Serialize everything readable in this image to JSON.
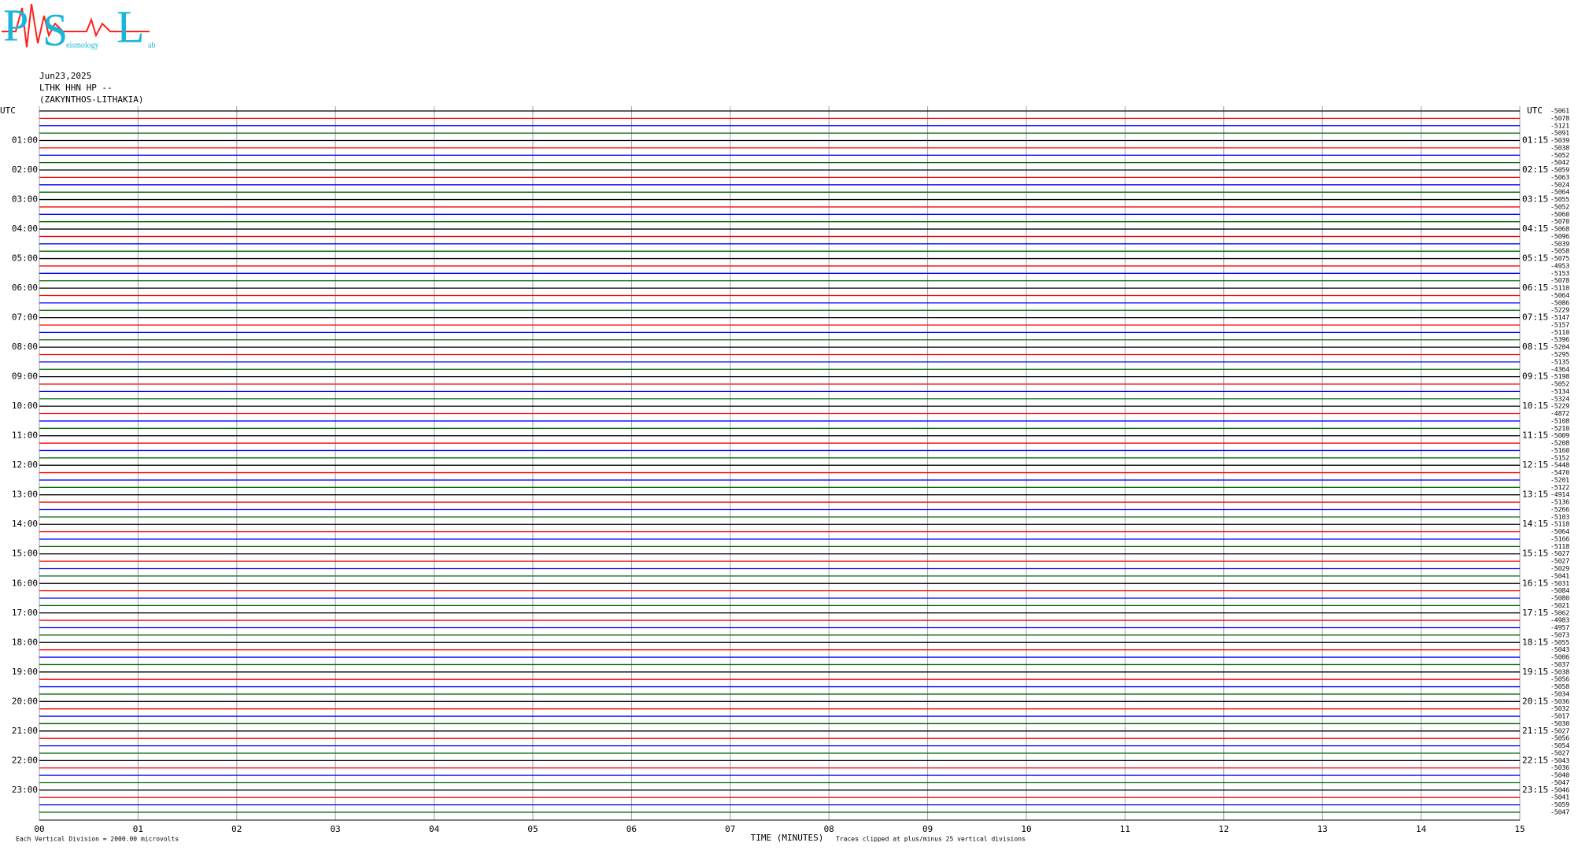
{
  "header": {
    "logo": {
      "letters": [
        "P",
        "S",
        "L"
      ],
      "small": [
        "eismology",
        "ab"
      ]
    },
    "date": "Jun23,2025",
    "station": "LTHK HHN HP --",
    "location": "(ZAKYNTHOS-LITHAKIA)"
  },
  "left_labels": [
    "UTC",
    "01:00",
    "02:00",
    "03:00",
    "04:00",
    "05:00",
    "06:00",
    "07:00",
    "08:00",
    "09:00",
    "10:00",
    "11:00",
    "12:00",
    "13:00",
    "14:00",
    "15:00",
    "16:00",
    "17:00",
    "18:00",
    "19:00",
    "20:00",
    "21:00",
    "22:00",
    "23:00"
  ],
  "right_labels": [
    "UTC",
    "01:15",
    "02:15",
    "03:15",
    "04:15",
    "05:15",
    "06:15",
    "07:15",
    "08:15",
    "09:15",
    "10:15",
    "11:15",
    "12:15",
    "13:15",
    "14:15",
    "15:15",
    "16:15",
    "17:15",
    "18:15",
    "19:15",
    "20:15",
    "21:15",
    "22:15",
    "23:15"
  ],
  "trace_offsets": [
    -5061,
    -5078,
    -5121,
    -5091,
    -5039,
    -5038,
    -5052,
    -5042,
    -5059,
    -5063,
    -5024,
    -5064,
    -5055,
    -5052,
    -5060,
    -5070,
    -5068,
    -5096,
    -5039,
    -5058,
    -5075,
    -4953,
    -5153,
    -5078,
    -5110,
    -5064,
    -5086,
    -5229,
    -5147,
    -5157,
    -5110,
    -5396,
    -5204,
    -5295,
    -5135,
    -4364,
    -5198,
    -5052,
    -5134,
    -5324,
    -5229,
    -4872,
    -5108,
    -5210,
    -5009,
    -5208,
    -5160,
    -5152,
    -5448,
    -5470,
    -5201,
    -5122,
    -4914,
    -5136,
    -5266,
    -5103,
    -5118,
    -5064,
    -5166,
    -5118,
    -5027,
    -5027,
    -5029,
    -5041,
    -5031,
    -5084,
    -5080,
    -5021,
    -5062,
    -4983,
    -4957,
    -5073,
    -5055,
    -5043,
    -5006,
    -5037,
    -5038,
    -5056,
    -5058,
    -5034,
    -5036,
    -5032,
    -5017,
    -5030,
    -5027,
    -5056,
    -5054,
    -5027,
    -5043,
    -5036,
    -5040,
    -5047,
    -5046,
    -5041,
    -5059,
    -5047
  ],
  "trace_colors": [
    "#000000",
    "#ff0000",
    "#0000ff",
    "#006400"
  ],
  "x_axis": {
    "ticks": [
      "00",
      "01",
      "02",
      "03",
      "04",
      "05",
      "06",
      "07",
      "08",
      "09",
      "10",
      "11",
      "12",
      "13",
      "14",
      "15"
    ],
    "title": "TIME (MINUTES)"
  },
  "footer": {
    "scale": "Each Vertical Division = 2000.00 microvolts",
    "clip": "Traces clipped at plus/minus 25 vertical divisions"
  }
}
